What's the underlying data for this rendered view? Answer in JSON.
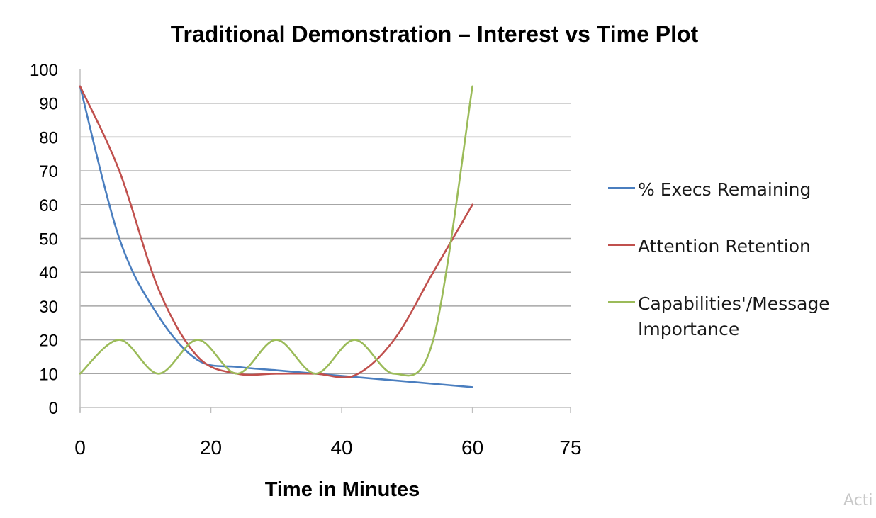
{
  "chart_data": {
    "type": "line",
    "title": "Traditional Demonstration – Interest vs Time Plot",
    "xlabel": "Time in Minutes",
    "ylabel": "",
    "xlim": [
      0,
      75
    ],
    "ylim": [
      0,
      100
    ],
    "x_ticks": [
      0,
      20,
      40,
      60,
      75
    ],
    "y_ticks": [
      0,
      10,
      20,
      30,
      40,
      50,
      60,
      70,
      80,
      90,
      100
    ],
    "grid": "horizontal",
    "legend_position": "right",
    "series": [
      {
        "name": "% Execs Remaining",
        "color": "#4a7ebf",
        "x": [
          0,
          6,
          12,
          18,
          24,
          30,
          36,
          42,
          48,
          54,
          60
        ],
        "values": [
          95,
          50,
          27,
          14,
          12,
          11,
          10,
          9,
          8,
          7,
          6
        ]
      },
      {
        "name": "Attention Retention",
        "color": "#c0504d",
        "x": [
          0,
          6,
          12,
          18,
          24,
          30,
          36,
          42,
          48,
          54,
          60
        ],
        "values": [
          95,
          70,
          35,
          15,
          10,
          10,
          10,
          9.5,
          20,
          40,
          60
        ]
      },
      {
        "name": "Capabilities'/Message Importance",
        "color": "#9bbb59",
        "x": [
          0,
          6,
          12,
          18,
          24,
          30,
          36,
          42,
          48,
          54,
          60
        ],
        "values": [
          10,
          20,
          10,
          20,
          10,
          20,
          10,
          20,
          10,
          20,
          95
        ]
      }
    ]
  },
  "legend": {
    "item1": "% Execs Remaining",
    "item2": "Attention Retention",
    "item3_line1": "Capabilities'/Message",
    "item3_line2": "Importance"
  },
  "watermark": "Acti"
}
